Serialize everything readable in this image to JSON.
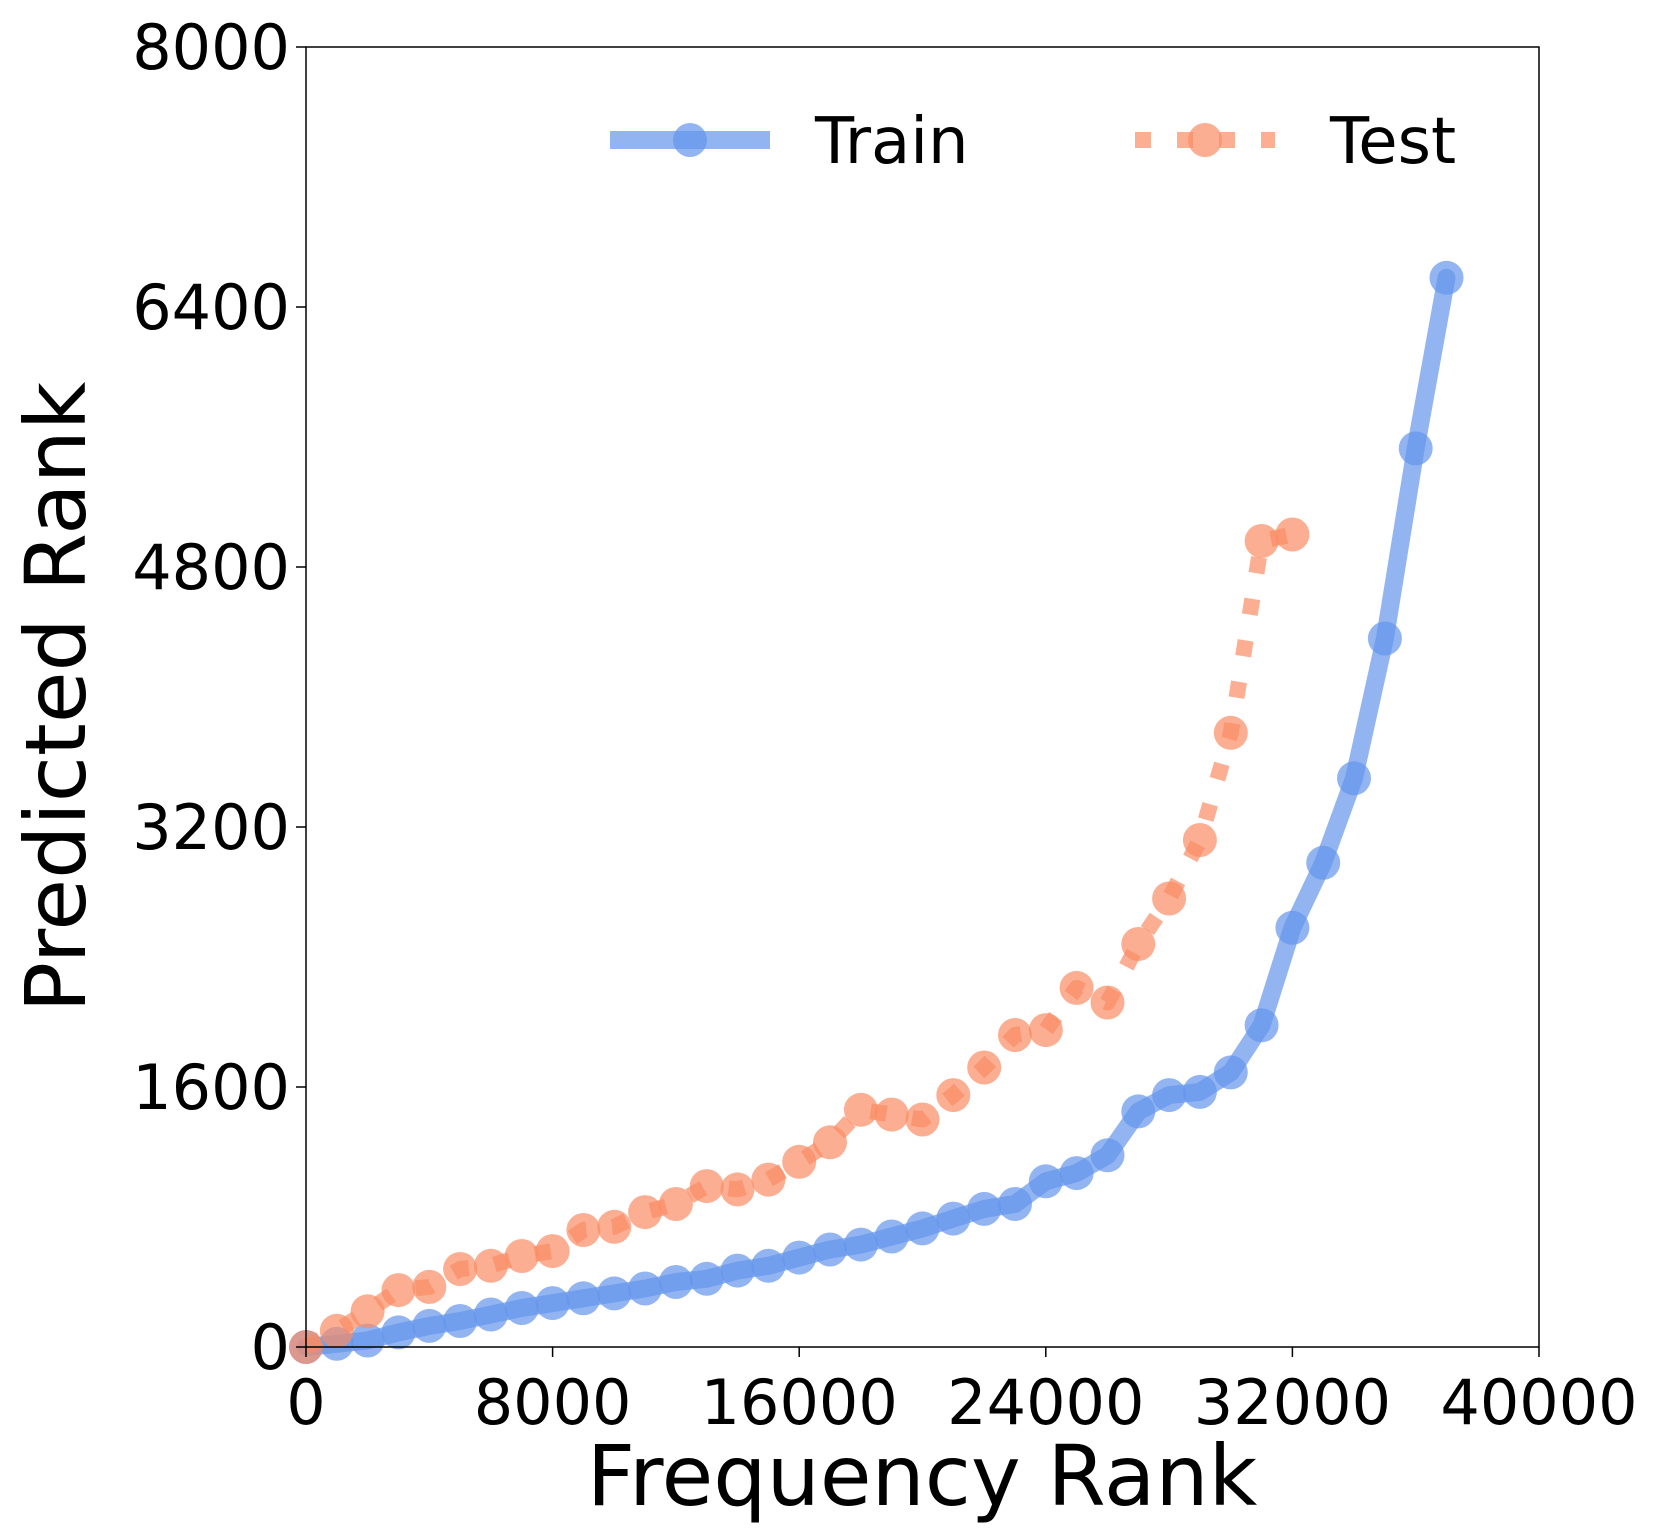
{
  "chart_data": {
    "type": "line",
    "xlabel": "Frequency Rank",
    "ylabel": "Predicted Rank",
    "xlim": [
      0,
      40000
    ],
    "ylim": [
      0,
      8000
    ],
    "xticks": [
      0,
      8000,
      16000,
      24000,
      32000,
      40000
    ],
    "yticks": [
      0,
      1600,
      3200,
      4800,
      6400,
      8000
    ],
    "xtick_labels": [
      "0",
      "8000",
      "16000",
      "24000",
      "32000",
      "40000"
    ],
    "ytick_labels": [
      "0",
      "1600",
      "3200",
      "4800",
      "6400",
      "8000"
    ],
    "grid": false,
    "legend_position": "top-right",
    "series": [
      {
        "name": "Train",
        "color": "#6495ED",
        "line_style": "solid",
        "marker": "circle",
        "x": [
          0,
          1000,
          2000,
          3000,
          4000,
          5000,
          6000,
          7000,
          8000,
          9000,
          10000,
          11000,
          12000,
          13000,
          14000,
          15000,
          16000,
          17000,
          18000,
          19000,
          20000,
          21000,
          22000,
          23000,
          24000,
          25000,
          26000,
          27000,
          28000,
          29000,
          30000,
          31000,
          32000,
          33000,
          34000,
          35000,
          36000,
          37000
        ],
        "y": [
          0,
          20,
          40,
          90,
          130,
          160,
          200,
          240,
          270,
          300,
          330,
          360,
          400,
          420,
          470,
          500,
          550,
          600,
          630,
          680,
          730,
          790,
          850,
          880,
          1020,
          1070,
          1180,
          1450,
          1550,
          1570,
          1690,
          1980,
          2580,
          2980,
          3500,
          4360,
          5530,
          6580
        ]
      },
      {
        "name": "Test",
        "color": "#FA8C64",
        "line_style": "dotted",
        "marker": "circle",
        "x": [
          0,
          1000,
          2000,
          3000,
          4000,
          5000,
          6000,
          7000,
          8000,
          9000,
          10000,
          11000,
          12000,
          13000,
          14000,
          15000,
          16000,
          17000,
          18000,
          19000,
          20000,
          21000,
          22000,
          23000,
          24000,
          25000,
          26000,
          27000,
          28000,
          29000,
          30000,
          31000,
          32000
        ],
        "y": [
          0,
          100,
          220,
          350,
          370,
          480,
          500,
          560,
          590,
          720,
          740,
          830,
          880,
          990,
          970,
          1030,
          1140,
          1260,
          1460,
          1430,
          1400,
          1550,
          1720,
          1920,
          1950,
          2210,
          2120,
          2480,
          2760,
          3120,
          3780,
          4960,
          5000
        ]
      }
    ]
  }
}
